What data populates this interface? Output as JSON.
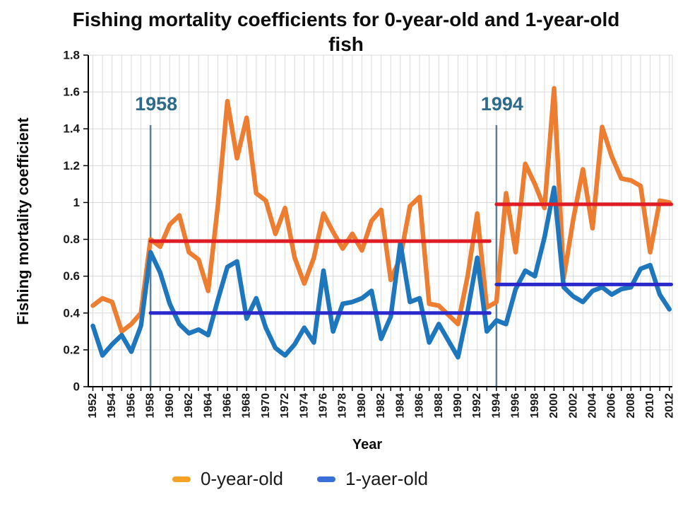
{
  "title": "Fishing mortality coefficients for 0-year-old and 1-year-old fish",
  "y_axis": {
    "title": "Fishing mortality coefficient"
  },
  "x_axis": {
    "title": "Year",
    "label_step": 2
  },
  "annotations": [
    {
      "label": "1958",
      "year": 1958
    },
    {
      "label": "1994",
      "year": 1994
    }
  ],
  "legend": [
    {
      "label": "0-year-old",
      "color": "#F5A328"
    },
    {
      "label": "1-yaer-old",
      "color": "#3A6FD8"
    }
  ],
  "colors": {
    "series_0yo": "#ED7D31",
    "series_1yo": "#1E76BC",
    "mean_line_red": "#E01B24",
    "mean_line_navy": "#2929CC",
    "period_line": "#5C7F99",
    "annotation_text": "#2E6B8A",
    "gridline": "#D9D9D9",
    "axis": "#000000"
  },
  "chart_data": {
    "type": "line",
    "x": [
      1952,
      1953,
      1954,
      1955,
      1956,
      1957,
      1958,
      1959,
      1960,
      1961,
      1962,
      1963,
      1964,
      1965,
      1966,
      1967,
      1968,
      1969,
      1970,
      1971,
      1972,
      1973,
      1974,
      1975,
      1976,
      1977,
      1978,
      1979,
      1980,
      1981,
      1982,
      1983,
      1984,
      1985,
      1986,
      1987,
      1988,
      1989,
      1990,
      1991,
      1992,
      1993,
      1994,
      1995,
      1996,
      1997,
      1998,
      1999,
      2000,
      2001,
      2002,
      2003,
      2004,
      2005,
      2006,
      2007,
      2008,
      2009,
      2010,
      2011,
      2012
    ],
    "series": [
      {
        "name": "0-year-old",
        "color": "#ED7D31",
        "values": [
          0.44,
          0.48,
          0.46,
          0.3,
          0.34,
          0.4,
          0.8,
          0.76,
          0.88,
          0.93,
          0.73,
          0.69,
          0.52,
          0.98,
          1.55,
          1.24,
          1.46,
          1.05,
          1.01,
          0.83,
          0.97,
          0.7,
          0.56,
          0.7,
          0.94,
          0.84,
          0.75,
          0.83,
          0.74,
          0.9,
          0.96,
          0.58,
          0.7,
          0.98,
          1.03,
          0.45,
          0.44,
          0.39,
          0.34,
          0.6,
          0.94,
          0.43,
          0.46,
          1.05,
          0.73,
          1.21,
          1.1,
          0.97,
          1.62,
          0.59,
          0.91,
          1.18,
          0.86,
          1.41,
          1.25,
          1.13,
          1.12,
          1.09,
          0.73,
          1.01,
          1.0
        ]
      },
      {
        "name": "1-yaer-old",
        "color": "#1E76BC",
        "values": [
          0.33,
          0.17,
          0.23,
          0.28,
          0.19,
          0.33,
          0.73,
          0.62,
          0.45,
          0.34,
          0.29,
          0.31,
          0.28,
          0.47,
          0.65,
          0.68,
          0.37,
          0.48,
          0.32,
          0.21,
          0.17,
          0.23,
          0.32,
          0.24,
          0.63,
          0.3,
          0.45,
          0.46,
          0.48,
          0.52,
          0.26,
          0.38,
          0.78,
          0.46,
          0.48,
          0.24,
          0.34,
          0.25,
          0.16,
          0.41,
          0.7,
          0.3,
          0.36,
          0.34,
          0.53,
          0.63,
          0.6,
          0.81,
          1.08,
          0.54,
          0.49,
          0.46,
          0.52,
          0.54,
          0.5,
          0.53,
          0.54,
          0.64,
          0.66,
          0.5,
          0.42
        ]
      }
    ],
    "mean_lines": [
      {
        "name": "mean-0-year-old-1958-1993",
        "color": "#E01B24",
        "value": 0.79,
        "from": 1958,
        "to": 1993.3
      },
      {
        "name": "mean-0-year-old-1994-2012",
        "color": "#E01B24",
        "value": 0.99,
        "from": 1994,
        "to": 2012.2
      },
      {
        "name": "mean-1-year-old-1958-1993",
        "color": "#2929CC",
        "value": 0.4,
        "from": 1958,
        "to": 1993.3
      },
      {
        "name": "mean-1-year-old-1994-2012",
        "color": "#2929CC",
        "value": 0.555,
        "from": 1994,
        "to": 2012.2
      }
    ],
    "vertical_lines": [
      {
        "label": "1958",
        "year": 1958,
        "top": 1.42
      },
      {
        "label": "1994",
        "year": 1994,
        "top": 1.42
      }
    ],
    "title": "Fishing mortality coefficients for 0-year-old and 1-year-old fish",
    "xlabel": "Year",
    "ylabel": "Fishing mortality coefficient",
    "ylim": [
      0,
      1.8
    ],
    "ytick_step": 0.2,
    "xtick_label_step": 2,
    "grid": true,
    "legend_position": "bottom"
  }
}
